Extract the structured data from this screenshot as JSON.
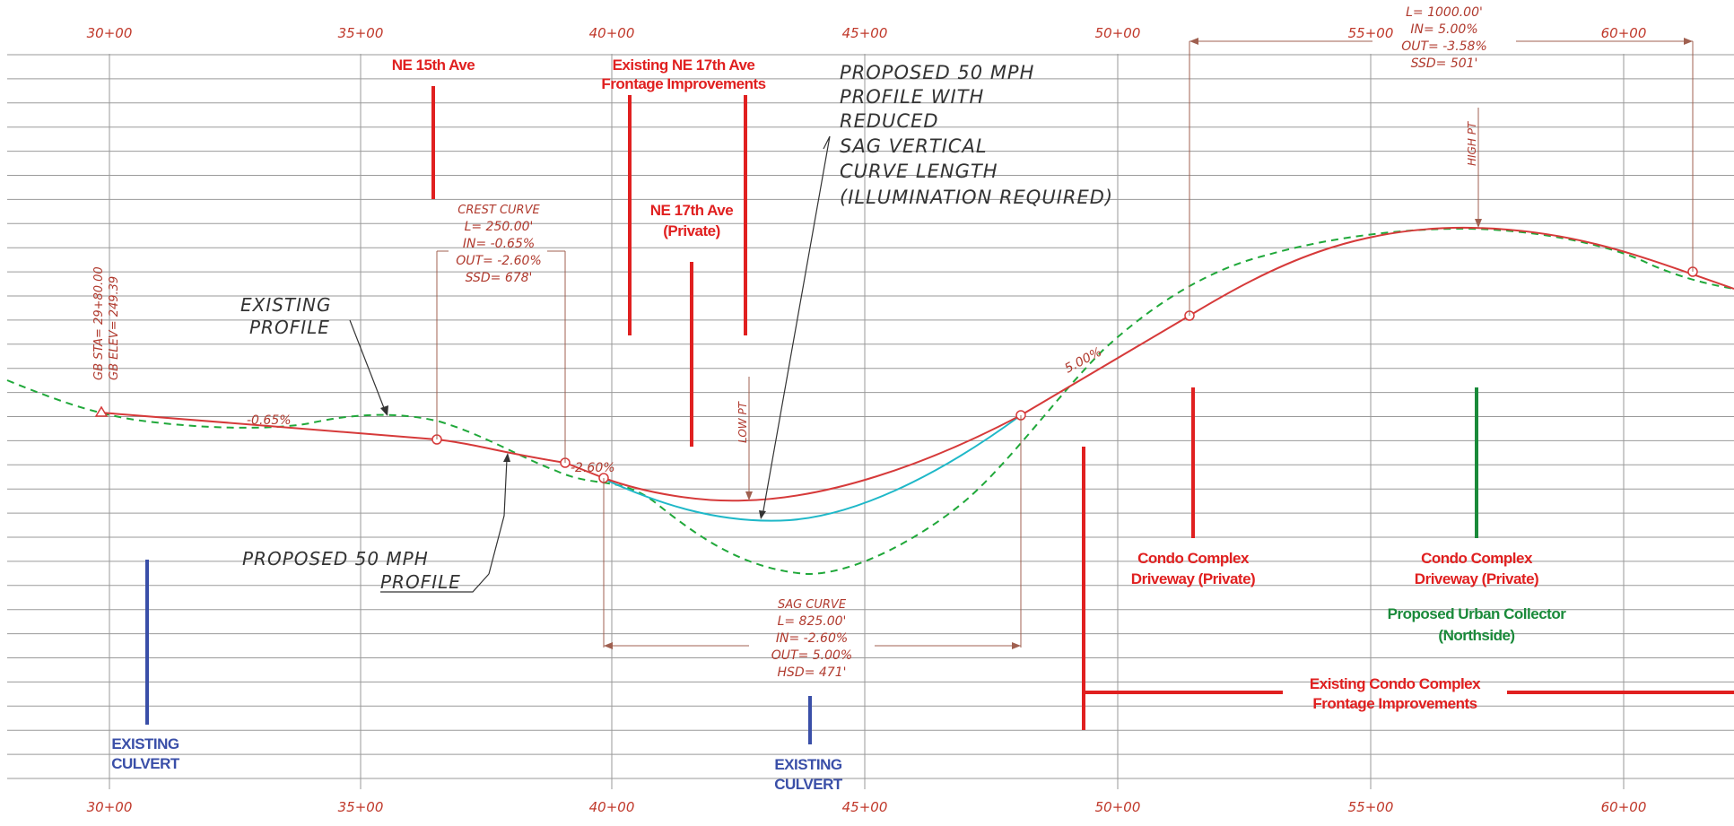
{
  "stations": {
    "top": [
      "30+00",
      "35+00",
      "40+00",
      "45+00",
      "50+00",
      "55+00",
      "60+00"
    ],
    "bottom": [
      "30+00",
      "35+00",
      "40+00",
      "45+00",
      "50+00",
      "55+00",
      "60+00"
    ]
  },
  "colors": {
    "grid": "#9a9a9a",
    "proposed": "#d63a3a",
    "existing": "#20a83a",
    "reduced": "#1fb8c8",
    "annotation_red": "#e02020",
    "culvert_blue": "#3a4fa8",
    "collector_green": "#1a8a3a",
    "leader": "#a06050",
    "cad_text": "#333333"
  },
  "cross_streets": {
    "ne15": "NE 15th Ave",
    "ne17_frontage": [
      "Existing NE 17th Ave",
      "Frontage Improvements"
    ],
    "ne17_private": [
      "NE 17th Ave",
      "(Private)"
    ],
    "condo_driveway_1": [
      "Condo Complex",
      "Driveway (Private)"
    ],
    "condo_driveway_2": [
      "Condo Complex",
      "Driveway (Private)"
    ],
    "urban_collector": [
      "Proposed Urban Collector",
      "(Northside)"
    ],
    "condo_frontage": [
      "Existing Condo Complex",
      "Frontage Improvements"
    ]
  },
  "culverts": {
    "left": [
      "EXISTING",
      "CULVERT"
    ],
    "center": [
      "EXISTING",
      "CULVERT"
    ]
  },
  "callouts": {
    "existing_profile": [
      "EXISTING",
      "PROFILE"
    ],
    "proposed_profile": [
      "PROPOSED 50 MPH",
      "PROFILE"
    ],
    "reduced_profile": [
      "PROPOSED 50 MPH",
      "PROFILE WITH",
      "REDUCED",
      "SAG VERTICAL",
      "CURVE LENGTH",
      "(ILLUMINATION REQUIRED)"
    ]
  },
  "curves": {
    "crest": [
      "CREST CURVE",
      "L= 250.00'",
      "IN= -0.65%",
      "OUT= -2.60%",
      "SSD= 678'"
    ],
    "sag": [
      "SAG CURVE",
      "L= 825.00'",
      "IN= -2.60%",
      "OUT= 5.00%",
      "HSD= 471'"
    ],
    "summit": [
      "L= 1000.00'",
      "IN= 5.00%",
      "OUT= -3.58%",
      "SSD= 501'"
    ]
  },
  "grade_labels": {
    "g1": "-0.65%",
    "g2": "-2.60%",
    "g3": "5.00%"
  },
  "point_labels": {
    "gb_sta": "GB STA= 29+80.00",
    "gb_elev": "GB ELEV= 249.39",
    "low_pt": "LOW PT",
    "high_pt": "HIGH PT"
  }
}
